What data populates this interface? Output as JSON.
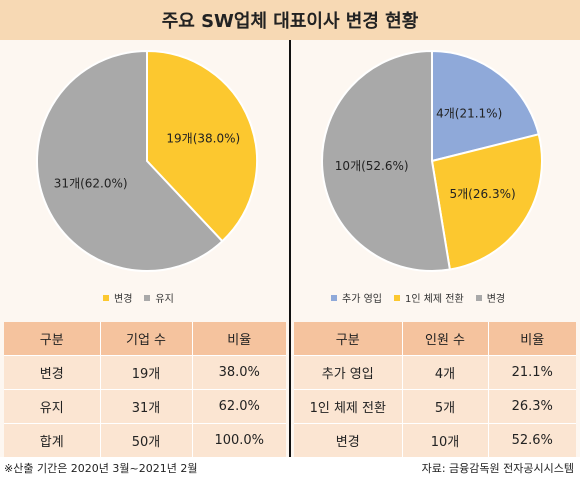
{
  "title": "주요 SW업체 대표이사 변경 현황",
  "charts": {
    "left": {
      "legend": [
        "변경",
        "유지"
      ],
      "slice_labels": [
        "19개(38.0%)",
        "31개(62.0%)"
      ]
    },
    "right": {
      "legend": [
        "추가 영입",
        "1인 체제 전환",
        "변경"
      ],
      "slice_labels": [
        "4개(21.1%)",
        "5개(26.3%)",
        "10개(52.6%)"
      ]
    }
  },
  "chart_data": [
    {
      "type": "pie",
      "categories": [
        "변경",
        "유지"
      ],
      "values": [
        38.0,
        62.0
      ],
      "counts": [
        19,
        31
      ],
      "colors": [
        "#fcc82f",
        "#a9a9a9"
      ]
    },
    {
      "type": "pie",
      "categories": [
        "추가 영입",
        "1인 체제 전환",
        "변경"
      ],
      "values": [
        21.1,
        26.3,
        52.6
      ],
      "counts": [
        4,
        5,
        10
      ],
      "colors": [
        "#8fa9d9",
        "#fcc82f",
        "#a9a9a9"
      ]
    }
  ],
  "left_table": {
    "headers": [
      "구분",
      "기업 수",
      "비율"
    ],
    "rows": [
      [
        "변경",
        "19개",
        "38.0%"
      ],
      [
        "유지",
        "31개",
        "62.0%"
      ],
      [
        "합계",
        "50개",
        "100.0%"
      ]
    ]
  },
  "right_table": {
    "headers": [
      "구분",
      "인원 수",
      "비율"
    ],
    "rows": [
      [
        "추가 영입",
        "4개",
        "21.1%"
      ],
      [
        "1인 체제 전환",
        "5개",
        "26.3%"
      ],
      [
        "변경",
        "10개",
        "52.6%"
      ]
    ]
  },
  "footer": {
    "left": "※산출 기간은 2020년 3월~2021년 2월",
    "right": "자료: 금융감독원 전자공시시스템"
  }
}
